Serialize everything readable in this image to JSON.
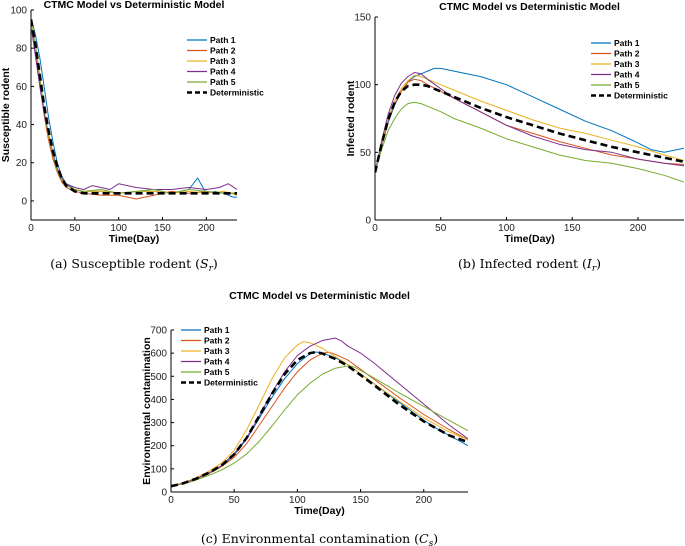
{
  "colors": {
    "path1": "#0072bd",
    "path2": "#d95319",
    "path3": "#edb120",
    "path4": "#7e2f8e",
    "path5": "#77ac30",
    "deterministic": "#000000"
  },
  "chart_data": [
    {
      "id": "susceptible",
      "type": "line",
      "title": "CTMC Model vs Deterministic Model",
      "caption": "(a) Susceptible rodent (S_r)",
      "caption_parts": [
        "(a) Susceptible rodent (",
        "S",
        "r",
        ")"
      ],
      "xlabel": "Time(Day)",
      "ylabel": "Susceptible rodent",
      "xlim": [
        0,
        235
      ],
      "ylim": [
        -10,
        100
      ],
      "xticks": [
        0,
        50,
        100,
        150,
        200
      ],
      "yticks": [
        0,
        20,
        40,
        60,
        80,
        100
      ],
      "legend_position": "top-right",
      "series": [
        {
          "name": "Path 1",
          "color_key": "path1",
          "x": [
            0,
            5,
            10,
            15,
            20,
            25,
            30,
            35,
            40,
            50,
            60,
            80,
            100,
            120,
            140,
            160,
            180,
            190,
            200,
            210,
            220,
            230,
            235
          ],
          "values": [
            96,
            87,
            75,
            60,
            44,
            31,
            20,
            13,
            9,
            6,
            5,
            5,
            4,
            5,
            5,
            4,
            6,
            12,
            4,
            5,
            4,
            2,
            2
          ]
        },
        {
          "name": "Path 2",
          "color_key": "path2",
          "x": [
            0,
            5,
            10,
            15,
            20,
            25,
            30,
            35,
            40,
            50,
            60,
            80,
            100,
            110,
            120,
            140,
            160,
            180,
            200,
            220,
            235
          ],
          "values": [
            94,
            78,
            62,
            45,
            32,
            22,
            15,
            10,
            7,
            5,
            4,
            3,
            3,
            2,
            1,
            3,
            5,
            4,
            5,
            4,
            4
          ]
        },
        {
          "name": "Path 3",
          "color_key": "path3",
          "x": [
            0,
            5,
            10,
            15,
            20,
            25,
            30,
            35,
            40,
            50,
            60,
            80,
            100,
            120,
            140,
            160,
            180,
            200,
            220,
            235
          ],
          "values": [
            95,
            80,
            63,
            47,
            34,
            24,
            16,
            11,
            8,
            6,
            5,
            5,
            4,
            5,
            5,
            4,
            5,
            4,
            5,
            3
          ]
        },
        {
          "name": "Path 4",
          "color_key": "path4",
          "x": [
            0,
            5,
            10,
            15,
            20,
            25,
            30,
            35,
            40,
            50,
            60,
            70,
            80,
            90,
            100,
            120,
            140,
            160,
            180,
            200,
            215,
            225,
            235
          ],
          "values": [
            92,
            76,
            60,
            46,
            35,
            25,
            17,
            12,
            9,
            7,
            6,
            8,
            7,
            6,
            9,
            7,
            6,
            6,
            7,
            6,
            7,
            9,
            6
          ]
        },
        {
          "name": "Path 5",
          "color_key": "path5",
          "x": [
            0,
            5,
            10,
            15,
            20,
            25,
            30,
            35,
            40,
            50,
            60,
            80,
            100,
            120,
            140,
            160,
            180,
            200,
            220,
            235
          ],
          "values": [
            93,
            82,
            65,
            48,
            35,
            24,
            16,
            11,
            8,
            6,
            5,
            6,
            4,
            5,
            6,
            4,
            6,
            5,
            4,
            4
          ]
        },
        {
          "name": "Deterministic",
          "color_key": "deterministic",
          "dashed": true,
          "x": [
            0,
            5,
            10,
            15,
            20,
            25,
            30,
            35,
            40,
            50,
            60,
            80,
            100,
            150,
            200,
            235
          ],
          "values": [
            95,
            82,
            66,
            50,
            37,
            26,
            18,
            12,
            8,
            5,
            4,
            4,
            4,
            4,
            4,
            4
          ]
        }
      ]
    },
    {
      "id": "infected",
      "type": "line",
      "title": "CTMC Model vs Deterministic Model",
      "caption": "(b) Infected rodent (I_r)",
      "caption_parts": [
        "(b) Infected rodent (",
        "I",
        "r",
        ")"
      ],
      "xlabel": "Time(Day)",
      "ylabel": "Infected rodent",
      "xlim": [
        0,
        235
      ],
      "ylim": [
        0,
        150
      ],
      "xticks": [
        0,
        50,
        100,
        150,
        200
      ],
      "yticks": [
        0,
        50,
        100,
        150
      ],
      "legend_position": "top-right",
      "series": [
        {
          "name": "Path 1",
          "color_key": "path1",
          "x": [
            0,
            5,
            10,
            15,
            20,
            25,
            30,
            35,
            40,
            45,
            50,
            60,
            80,
            100,
            120,
            140,
            160,
            180,
            200,
            210,
            220,
            235
          ],
          "values": [
            34,
            55,
            72,
            85,
            95,
            102,
            106,
            108,
            110,
            112,
            112,
            110,
            106,
            100,
            91,
            82,
            73,
            66,
            57,
            52,
            50,
            53
          ]
        },
        {
          "name": "Path 2",
          "color_key": "path2",
          "x": [
            0,
            5,
            10,
            15,
            20,
            25,
            30,
            35,
            40,
            50,
            60,
            80,
            100,
            120,
            140,
            160,
            180,
            200,
            220,
            235
          ],
          "values": [
            36,
            56,
            74,
            86,
            95,
            102,
            104,
            103,
            100,
            95,
            90,
            80,
            70,
            64,
            58,
            53,
            48,
            45,
            42,
            41
          ]
        },
        {
          "name": "Path 3",
          "color_key": "path3",
          "x": [
            0,
            5,
            10,
            15,
            20,
            25,
            30,
            35,
            40,
            50,
            60,
            80,
            100,
            120,
            140,
            160,
            180,
            200,
            220,
            235
          ],
          "values": [
            35,
            57,
            75,
            88,
            97,
            103,
            107,
            106,
            104,
            100,
            96,
            88,
            81,
            74,
            68,
            64,
            59,
            54,
            48,
            44
          ]
        },
        {
          "name": "Path 4",
          "color_key": "path4",
          "x": [
            0,
            5,
            10,
            15,
            20,
            25,
            30,
            35,
            40,
            50,
            60,
            80,
            100,
            120,
            140,
            160,
            180,
            200,
            220,
            235
          ],
          "values": [
            35,
            58,
            78,
            92,
            101,
            106,
            109,
            108,
            104,
            97,
            90,
            80,
            70,
            62,
            56,
            52,
            50,
            45,
            42,
            40
          ]
        },
        {
          "name": "Path 5",
          "color_key": "path5",
          "x": [
            0,
            5,
            10,
            15,
            20,
            25,
            30,
            35,
            40,
            50,
            60,
            80,
            100,
            120,
            140,
            160,
            180,
            200,
            220,
            235
          ],
          "values": [
            36,
            52,
            66,
            75,
            82,
            86,
            87,
            86,
            84,
            80,
            75,
            68,
            60,
            54,
            48,
            44,
            42,
            38,
            33,
            28
          ]
        },
        {
          "name": "Deterministic",
          "color_key": "deterministic",
          "dashed": true,
          "x": [
            0,
            5,
            10,
            15,
            20,
            25,
            30,
            35,
            40,
            50,
            60,
            80,
            100,
            120,
            140,
            160,
            180,
            200,
            220,
            235
          ],
          "values": [
            35,
            56,
            74,
            87,
            95,
            99,
            100,
            100,
            99,
            95,
            91,
            83,
            76,
            70,
            64,
            59,
            54,
            50,
            46,
            43
          ]
        }
      ]
    },
    {
      "id": "environment",
      "type": "line",
      "title": "CTMC Model vs Deterministic Model",
      "caption": "(c) Environmental contamination (C_s)",
      "caption_parts": [
        "(c) Environmental contamination (",
        "C",
        "s",
        ")"
      ],
      "xlabel": "Time(Day)",
      "ylabel": "Environmental contamination",
      "xlim": [
        0,
        235
      ],
      "ylim": [
        0,
        700
      ],
      "xticks": [
        0,
        50,
        100,
        150,
        200
      ],
      "yticks": [
        0,
        100,
        200,
        300,
        400,
        500,
        600,
        700
      ],
      "legend_position": "top-left",
      "series": [
        {
          "name": "Path 1",
          "color_key": "path1",
          "x": [
            0,
            10,
            20,
            30,
            40,
            50,
            60,
            70,
            80,
            90,
            100,
            110,
            115,
            120,
            130,
            140,
            150,
            160,
            170,
            180,
            190,
            200,
            210,
            220,
            230,
            235
          ],
          "values": [
            25,
            38,
            58,
            82,
            112,
            160,
            230,
            320,
            410,
            490,
            555,
            598,
            605,
            600,
            580,
            550,
            510,
            470,
            430,
            390,
            350,
            310,
            275,
            245,
            215,
            200
          ]
        },
        {
          "name": "Path 2",
          "color_key": "path2",
          "x": [
            0,
            10,
            20,
            30,
            40,
            50,
            60,
            70,
            80,
            90,
            100,
            110,
            120,
            125,
            130,
            140,
            150,
            160,
            180,
            200,
            220,
            235
          ],
          "values": [
            25,
            37,
            56,
            80,
            110,
            150,
            210,
            290,
            370,
            450,
            520,
            570,
            600,
            603,
            595,
            570,
            530,
            490,
            410,
            335,
            270,
            225
          ]
        },
        {
          "name": "Path 3",
          "color_key": "path3",
          "x": [
            0,
            10,
            20,
            30,
            40,
            50,
            60,
            70,
            80,
            90,
            100,
            105,
            110,
            120,
            130,
            140,
            150,
            160,
            180,
            200,
            220,
            235
          ],
          "values": [
            25,
            40,
            62,
            90,
            125,
            180,
            270,
            380,
            490,
            580,
            635,
            650,
            645,
            620,
            585,
            550,
            510,
            470,
            395,
            320,
            260,
            225
          ]
        },
        {
          "name": "Path 4",
          "color_key": "path4",
          "x": [
            0,
            10,
            20,
            30,
            40,
            50,
            60,
            70,
            80,
            90,
            100,
            110,
            120,
            130,
            135,
            140,
            150,
            160,
            180,
            200,
            220,
            235
          ],
          "values": [
            25,
            38,
            58,
            82,
            115,
            165,
            235,
            330,
            430,
            520,
            590,
            630,
            655,
            665,
            652,
            630,
            600,
            560,
            470,
            380,
            290,
            230
          ]
        },
        {
          "name": "Path 5",
          "color_key": "path5",
          "x": [
            0,
            10,
            20,
            30,
            40,
            50,
            60,
            70,
            80,
            90,
            100,
            110,
            120,
            130,
            140,
            145,
            150,
            160,
            180,
            200,
            220,
            235
          ],
          "values": [
            25,
            35,
            52,
            72,
            95,
            125,
            165,
            220,
            285,
            355,
            420,
            470,
            510,
            535,
            545,
            540,
            525,
            495,
            430,
            370,
            310,
            265
          ]
        },
        {
          "name": "Deterministic",
          "color_key": "deterministic",
          "dashed": true,
          "x": [
            0,
            10,
            20,
            30,
            40,
            50,
            60,
            70,
            80,
            90,
            100,
            110,
            115,
            120,
            130,
            140,
            150,
            160,
            180,
            200,
            220,
            235
          ],
          "values": [
            25,
            38,
            58,
            83,
            115,
            163,
            235,
            330,
            425,
            510,
            570,
            600,
            605,
            598,
            575,
            545,
            505,
            465,
            380,
            305,
            245,
            215
          ]
        }
      ]
    }
  ]
}
